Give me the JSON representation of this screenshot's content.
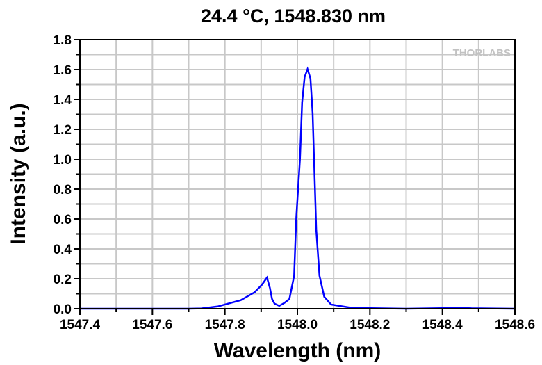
{
  "chart_data": {
    "type": "line",
    "title": "24.4 °C, 1548.830 nm",
    "xlabel": "Wavelength (nm)",
    "ylabel": "Intensity (a.u.)",
    "xlim": [
      1547.4,
      1548.6
    ],
    "ylim": [
      0,
      1.8
    ],
    "xticks": [
      "1547.4",
      "1547.6",
      "1547.8",
      "1548.0",
      "1548.2",
      "1548.4",
      "1548.6"
    ],
    "yticks": [
      "0.0",
      "0.2",
      "0.4",
      "0.6",
      "0.8",
      "1.0",
      "1.2",
      "1.4",
      "1.6",
      "1.8"
    ],
    "grid": true,
    "watermark": "THORLABS",
    "line_color": "#0000ff",
    "series": [
      {
        "x": [
          1547.4,
          1547.7,
          1547.735,
          1547.78,
          1547.844,
          1547.882,
          1547.902,
          1547.916,
          1547.924,
          1547.93,
          1547.937,
          1547.95,
          1547.965,
          1547.978,
          1547.991,
          1547.997,
          1548.007,
          1548.013,
          1548.02,
          1548.028,
          1548.036,
          1548.042,
          1548.047,
          1548.052,
          1548.061,
          1548.074,
          1548.093,
          1548.151,
          1548.3,
          1548.42,
          1548.45,
          1548.48,
          1548.6
        ],
        "y": [
          0,
          0,
          0.002,
          0.015,
          0.057,
          0.11,
          0.16,
          0.208,
          0.14,
          0.065,
          0.034,
          0.019,
          0.04,
          0.065,
          0.22,
          0.61,
          1.0,
          1.38,
          1.55,
          1.603,
          1.54,
          1.31,
          0.92,
          0.53,
          0.22,
          0.08,
          0.028,
          0.005,
          0,
          0.004,
          0.005,
          0.003,
          0
        ]
      }
    ]
  }
}
